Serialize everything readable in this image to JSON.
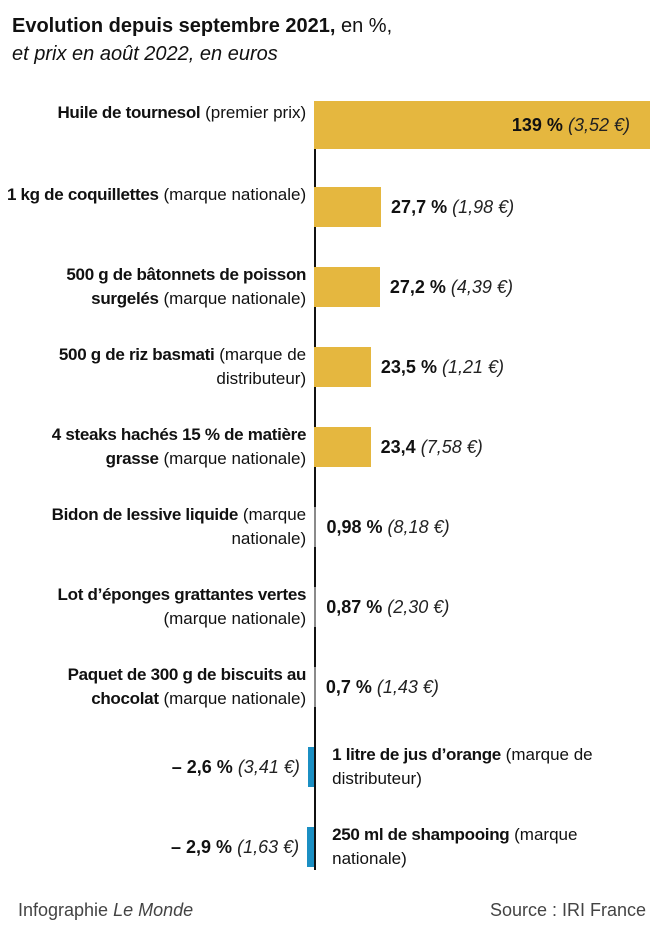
{
  "chart_data": {
    "type": "bar",
    "orientation": "horizontal",
    "title": "Evolution depuis septembre 2021,",
    "title_suffix": "en %,",
    "subtitle": "et prix en août 2022, en euros",
    "categories": [
      "Huile de tournesol",
      "1 kg de coquillettes",
      "500 g de bâtonnets de poisson surgelés",
      "500 g de riz basmati",
      "4 steaks hachés 15 % de matière grasse",
      "Bidon de lessive liquide",
      "Lot d’éponges grattantes vertes",
      "Paquet de 300 g de biscuits au chocolat",
      "1 litre de jus d’orange",
      "250 ml de shampooing"
    ],
    "category_notes": [
      "(premier prix)",
      "(marque nationale)",
      "(marque nationale)",
      "(marque de distributeur)",
      "(marque nationale)",
      "(marque nationale)",
      "(marque nationale)",
      "(marque nationale)",
      "(marque de distributeur)",
      "(marque nationale)"
    ],
    "values": [
      139,
      27.7,
      27.2,
      23.5,
      23.4,
      0.98,
      0.87,
      0.7,
      -2.6,
      -2.9
    ],
    "value_labels": [
      "139 %",
      "27,7 %",
      "27,2 %",
      "23,5 %",
      "23,4",
      "0,98 %",
      "0,87 %",
      "0,7 %",
      "– 2,6 %",
      "– 2,9 %"
    ],
    "price_labels": [
      "(3,52 €)",
      "(1,98 €)",
      "(4,39 €)",
      "(1,21 €)",
      "(7,58 €)",
      "(8,18 €)",
      "(2,30 €)",
      "(1,43 €)",
      "(3,41 €)",
      "(1,63 €)"
    ],
    "colors": [
      "#e5b73f",
      "#e5b73f",
      "#e5b73f",
      "#e5b73f",
      "#e5b73f",
      "#8a8a8a",
      "#8a8a8a",
      "#8a8a8a",
      "#1b8fc3",
      "#1b8fc3"
    ],
    "xlim": [
      -130,
      139
    ],
    "credit": "Infographie",
    "credit_source": "Le Monde",
    "source": "Source : IRI France"
  }
}
